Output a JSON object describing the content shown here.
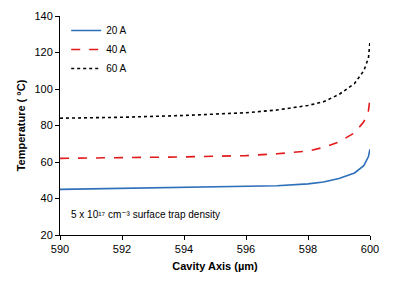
{
  "chart_data": {
    "type": "line",
    "x_label": "Cavity Axis (µm)",
    "y_label": "Temperature ( °C)",
    "annotation": "5 x 10¹⁷ cm⁻³ surface trap density",
    "x": [
      590,
      592,
      594,
      596,
      597,
      598,
      598.5,
      599,
      599.5,
      599.8,
      599.95,
      600
    ],
    "series": [
      {
        "name": "20 A",
        "color": "#2e6fba",
        "line_style": "solid",
        "values": [
          45,
          45.5,
          46,
          46.5,
          47,
          48,
          49,
          51,
          54,
          58,
          63,
          67
        ]
      },
      {
        "name": "40 A",
        "color": "#e31a1c",
        "line_style": "dash",
        "values": [
          62,
          62.3,
          62.8,
          63.5,
          64.5,
          66,
          68,
          71,
          76,
          82,
          88,
          95
        ]
      },
      {
        "name": "60 A",
        "color": "#000000",
        "line_style": "dot",
        "values": [
          84,
          84.5,
          85.5,
          87,
          88.5,
          91,
          93,
          97,
          103,
          110,
          117,
          126
        ]
      }
    ],
    "xlim": [
      590,
      600
    ],
    "xticks": [
      590,
      592,
      594,
      596,
      598,
      600
    ],
    "ylim": [
      20,
      140
    ],
    "yticks": [
      20,
      40,
      60,
      80,
      100,
      120,
      140
    ],
    "grid": false,
    "legend": "top-left",
    "marker": "none"
  }
}
